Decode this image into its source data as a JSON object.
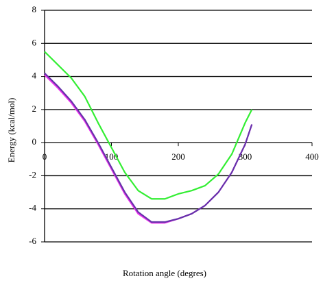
{
  "chart_data": {
    "type": "line",
    "x_label": "Rotation angle (degres)",
    "y_label": "Energy  (kcal/mol)",
    "x": [
      0,
      20,
      40,
      60,
      80,
      100,
      120,
      140,
      160,
      180,
      200,
      220,
      240,
      260,
      280,
      300,
      310
    ],
    "series": [
      {
        "color": "#33ee33",
        "values": [
          5.5,
          4.7,
          3.9,
          2.8,
          1.2,
          -0.3,
          -1.8,
          -2.9,
          -3.4,
          -3.4,
          -3.1,
          -2.9,
          -2.6,
          -1.9,
          -0.7,
          1.2,
          2.0
        ]
      },
      {
        "color": "#ee33ee",
        "values": [
          4.1,
          3.3,
          2.4,
          1.3,
          -0.1,
          -1.6,
          -3.1,
          -4.3,
          -4.85,
          -4.85,
          -4.6,
          -4.3,
          -3.8,
          -3.0,
          -1.8,
          -0.1,
          1.1
        ]
      },
      {
        "color": "#6633aa",
        "values": [
          4.2,
          3.4,
          2.5,
          1.4,
          0,
          -1.5,
          -3.0,
          -4.2,
          -4.8,
          -4.8,
          -4.6,
          -4.3,
          -3.8,
          -3.0,
          -1.8,
          -0.1,
          1.1
        ]
      }
    ],
    "xlim": [
      0,
      400
    ],
    "xticks": [
      0,
      100,
      200,
      300,
      400
    ],
    "ylim": [
      -6,
      8
    ],
    "yticks": [
      -6,
      -4,
      -2,
      0,
      2,
      4,
      6,
      8
    ],
    "grid": true
  }
}
